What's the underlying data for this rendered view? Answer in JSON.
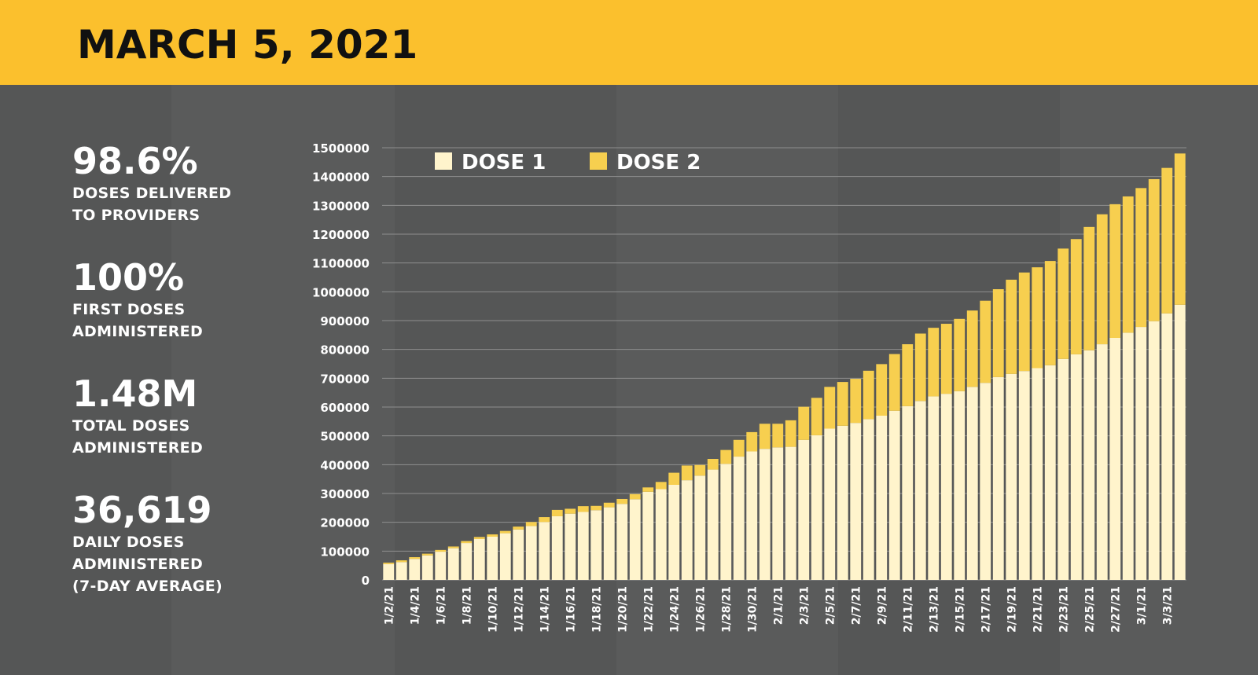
{
  "header": {
    "title": "MARCH 5, 2021"
  },
  "colors": {
    "header_bg": "#FBC02D",
    "background": "#555656",
    "dose1": "#FFF4CC",
    "dose2": "#F7CF4F",
    "text": "#FFFFFF"
  },
  "stats": [
    {
      "value": "98.6%",
      "label": [
        "DOSES DELIVERED",
        "TO PROVIDERS"
      ]
    },
    {
      "value": "100%",
      "label": [
        "FIRST DOSES",
        "ADMINISTERED"
      ]
    },
    {
      "value": "1.48M",
      "label": [
        "TOTAL DOSES",
        "ADMINISTERED"
      ]
    },
    {
      "value": "36,619",
      "label": [
        "DAILY DOSES",
        "ADMINISTERED",
        "(7-DAY AVERAGE)"
      ]
    }
  ],
  "chart_data": {
    "type": "bar",
    "stacked": true,
    "legend": "top-left",
    "grid": true,
    "ylim": [
      0,
      1500000
    ],
    "yticks": [
      0,
      100000,
      200000,
      300000,
      400000,
      500000,
      600000,
      700000,
      800000,
      900000,
      1000000,
      1100000,
      1200000,
      1300000,
      1400000,
      1500000
    ],
    "categories": [
      "1/2/21",
      "1/3/21",
      "1/4/21",
      "1/5/21",
      "1/6/21",
      "1/7/21",
      "1/8/21",
      "1/9/21",
      "1/10/21",
      "1/11/21",
      "1/12/21",
      "1/13/21",
      "1/14/21",
      "1/15/21",
      "1/16/21",
      "1/17/21",
      "1/18/21",
      "1/19/21",
      "1/20/21",
      "1/21/21",
      "1/22/21",
      "1/23/21",
      "1/24/21",
      "1/25/21",
      "1/26/21",
      "1/27/21",
      "1/28/21",
      "1/29/21",
      "1/30/21",
      "1/31/21",
      "2/1/21",
      "2/2/21",
      "2/3/21",
      "2/4/21",
      "2/5/21",
      "2/6/21",
      "2/7/21",
      "2/8/21",
      "2/9/21",
      "2/10/21",
      "2/11/21",
      "2/12/21",
      "2/13/21",
      "2/14/21",
      "2/15/21",
      "2/16/21",
      "2/17/21",
      "2/18/21",
      "2/19/21",
      "2/20/21",
      "2/21/21",
      "2/22/21",
      "2/23/21",
      "2/24/21",
      "2/25/21",
      "2/26/21",
      "2/27/21",
      "2/28/21",
      "3/1/21",
      "3/2/21",
      "3/3/21",
      "3/4/21"
    ],
    "x_tick_labels": [
      "1/2/21",
      "1/4/21",
      "1/6/21",
      "1/8/21",
      "1/10/21",
      "1/12/21",
      "1/14/21",
      "1/16/21",
      "1/18/21",
      "1/20/21",
      "1/22/21",
      "1/24/21",
      "1/26/21",
      "1/28/21",
      "1/30/21",
      "2/1/21",
      "2/3/21",
      "2/5/21",
      "2/7/21",
      "2/9/21",
      "2/11/21",
      "2/13/21",
      "2/15/21",
      "2/17/21",
      "2/19/21",
      "2/21/21",
      "2/23/21",
      "2/25/21",
      "2/27/21",
      "3/1/21",
      "3/3/21"
    ],
    "series": [
      {
        "name": "DOSE 1",
        "values": [
          55000,
          62000,
          73000,
          85000,
          98000,
          110000,
          128000,
          142000,
          150000,
          162000,
          175000,
          187000,
          201000,
          221000,
          230000,
          236000,
          242000,
          252000,
          264000,
          280000,
          306000,
          315000,
          330000,
          346000,
          362000,
          383000,
          403000,
          428000,
          446000,
          455000,
          460000,
          462000,
          486000,
          502000,
          525000,
          535000,
          545000,
          558000,
          570000,
          587000,
          603000,
          621000,
          637000,
          646000,
          655000,
          670000,
          684000,
          704000,
          715000,
          725000,
          735000,
          745000,
          767000,
          783000,
          797000,
          818000,
          840000,
          858000,
          878000,
          898000,
          925000,
          955000
        ]
      },
      {
        "name": "DOSE 2",
        "values": [
          5000,
          6000,
          6000,
          6000,
          6000,
          6000,
          7000,
          7000,
          8000,
          8000,
          10000,
          14000,
          17000,
          22000,
          17000,
          20000,
          15000,
          16000,
          17000,
          18000,
          15000,
          25000,
          42000,
          51000,
          37000,
          37000,
          48000,
          58000,
          67000,
          87000,
          82000,
          92000,
          115000,
          130000,
          145000,
          152000,
          153000,
          168000,
          179000,
          197000,
          215000,
          234000,
          238000,
          243000,
          251000,
          265000,
          285000,
          305000,
          327000,
          342000,
          350000,
          362000,
          383000,
          400000,
          428000,
          451000,
          464000,
          473000,
          482000,
          493000,
          505000,
          525000
        ]
      }
    ]
  }
}
